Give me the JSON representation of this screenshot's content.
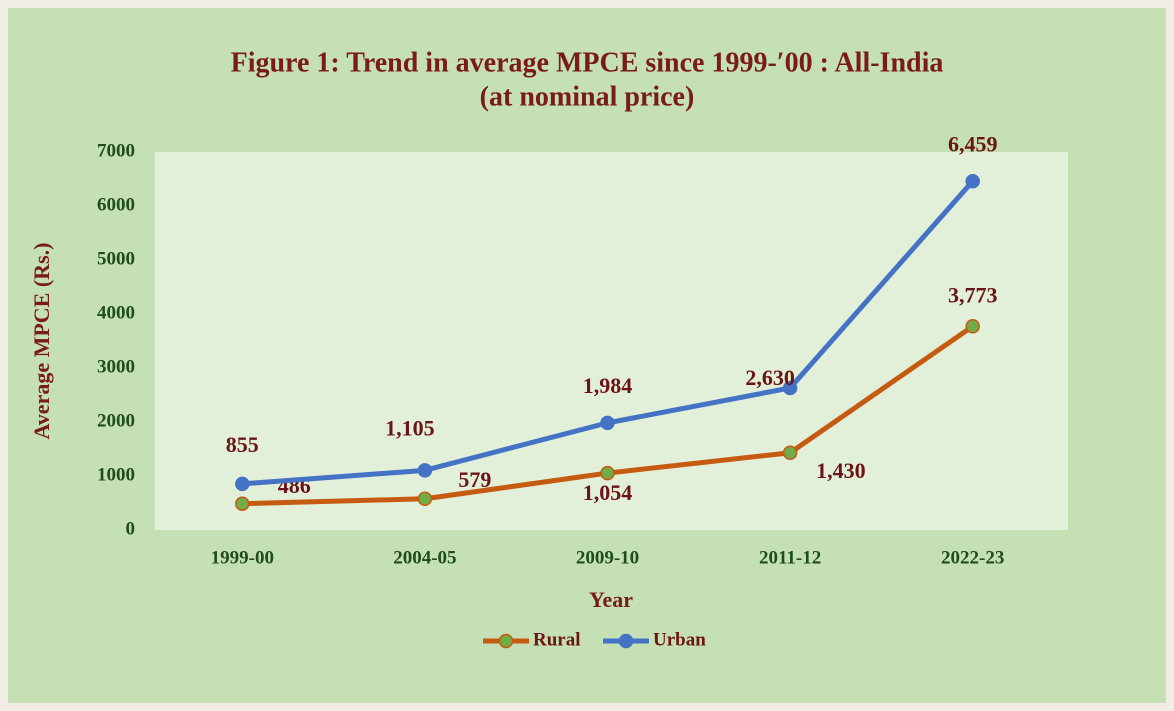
{
  "chart_data": {
    "type": "line",
    "title": [
      "Figure 1: Trend in average MPCE since 1999-′00 : All-India",
      "(at nominal price)"
    ],
    "xlabel": "Year",
    "ylabel": "Average MPCE (Rs.)",
    "categories": [
      "1999-00",
      "2004-05",
      "2009-10",
      "2011-12",
      "2022-23"
    ],
    "series": [
      {
        "name": "Rural",
        "color": "#c55a11",
        "marker_color": "#70ad47",
        "values": [
          486,
          579,
          1054,
          1430,
          3773
        ],
        "value_labels": [
          "486",
          "579",
          "1,054",
          "1,430",
          "3,773"
        ]
      },
      {
        "name": "Urban",
        "color": "#4472c4",
        "marker_color": "#4472c4",
        "values": [
          855,
          1105,
          1984,
          2630,
          6459
        ],
        "value_labels": [
          "855",
          "1,105",
          "1,984",
          "2,630",
          "6,459"
        ]
      }
    ],
    "ylim": [
      0,
      7000
    ],
    "yticks": [
      0,
      1000,
      2000,
      3000,
      4000,
      5000,
      6000,
      7000
    ],
    "legend": "bottom"
  }
}
